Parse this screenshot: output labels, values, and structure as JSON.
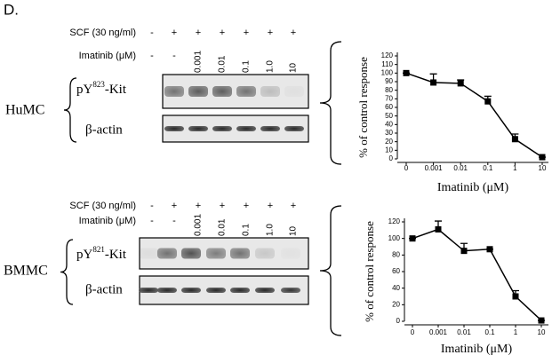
{
  "panel_label": "D.",
  "blots": [
    {
      "cell_line": "HuMC",
      "scf_label": "SCF  (30 ng/ml)",
      "scf": [
        "-",
        "+",
        "+",
        "+",
        "+",
        "+",
        "+"
      ],
      "imatinib_label": "Imatinib (μM)",
      "imatinib": [
        "-",
        "-",
        "0.001",
        "0.01",
        "0.1",
        "1.0",
        "10"
      ],
      "phospho": {
        "prefix": "pY",
        "site": "823",
        "suffix": "-Kit"
      },
      "loading": "β-actin"
    },
    {
      "cell_line": "BMMC",
      "scf_label": "SCF  (30 ng/ml)",
      "scf": [
        "-",
        "+",
        "+",
        "+",
        "+",
        "+",
        "+"
      ],
      "imatinib_label": "Imatinib (μM)",
      "imatinib": [
        "-",
        "-",
        "0.001",
        "0.01",
        "0.1",
        "1.0",
        "10"
      ],
      "phospho": {
        "prefix": "pY",
        "site": "821",
        "suffix": "-Kit"
      },
      "loading": "β-actin"
    }
  ],
  "chart_data": [
    {
      "type": "line",
      "y_label": "% of control response",
      "x_label": "Imatinib (μM)",
      "categories": [
        "0",
        "0.001",
        "0.01",
        "0.1",
        "1",
        "10"
      ],
      "series": [
        {
          "values": [
            100,
            89,
            88,
            67,
            23,
            2
          ],
          "errors": [
            0,
            10,
            4,
            6,
            6,
            0
          ],
          "color": "#000000"
        }
      ],
      "ylim": [
        0,
        120
      ],
      "yticks": [
        0,
        10,
        20,
        30,
        40,
        50,
        60,
        70,
        80,
        90,
        100,
        110,
        120
      ],
      "marker": "square"
    },
    {
      "type": "line",
      "y_label": "% of control response",
      "x_label": "Imatinib (μM)",
      "categories": [
        "0",
        "0.001",
        "0.01",
        "0.1",
        "1",
        "10"
      ],
      "series": [
        {
          "values": [
            100,
            111,
            85,
            87,
            30,
            1
          ],
          "errors": [
            0,
            10,
            9,
            0,
            7,
            0
          ],
          "color": "#000000"
        }
      ],
      "ylim": [
        0,
        120
      ],
      "yticks": [
        0,
        20,
        40,
        60,
        80,
        100,
        120
      ],
      "marker": "square"
    }
  ]
}
